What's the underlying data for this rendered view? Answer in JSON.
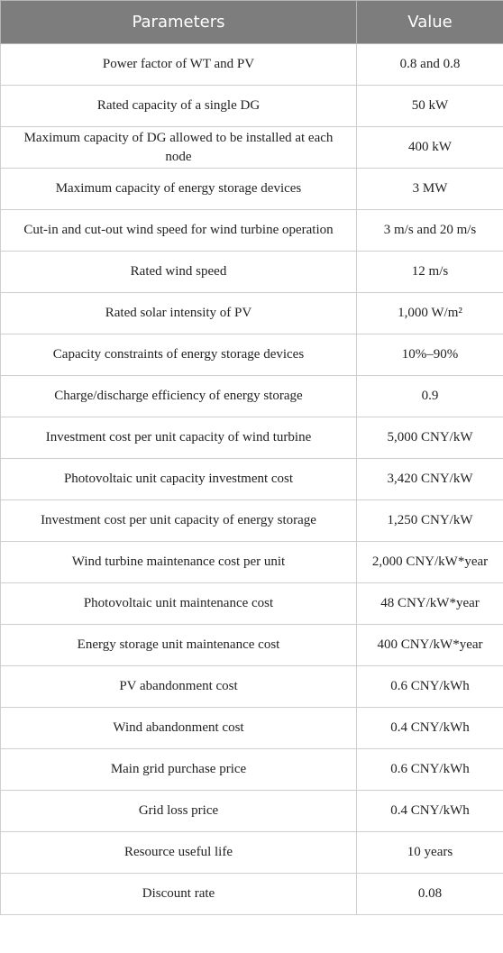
{
  "table": {
    "header": [
      "Parameters",
      "Value"
    ],
    "rows": [
      [
        "Power factor of WT and PV",
        "0.8 and 0.8"
      ],
      [
        "Rated capacity of a single DG",
        "50 kW"
      ],
      [
        "Maximum capacity of DG allowed to be installed at each node",
        "400 kW"
      ],
      [
        "Maximum capacity of energy storage devices",
        "3 MW"
      ],
      [
        "Cut-in and cut-out wind speed for wind turbine operation",
        "3 m/s and 20 m/s"
      ],
      [
        "Rated wind speed",
        "12 m/s"
      ],
      [
        "Rated solar intensity of PV",
        "1,000 W/m²"
      ],
      [
        "Capacity constraints of energy storage devices",
        "10%–90%"
      ],
      [
        "Charge/discharge efficiency of energy storage",
        "0.9"
      ],
      [
        "Investment cost per unit capacity of wind turbine",
        "5,000 CNY/kW"
      ],
      [
        "Photovoltaic unit capacity investment cost",
        "3,420 CNY/kW"
      ],
      [
        "Investment cost per unit capacity of energy storage",
        "1,250 CNY/kW"
      ],
      [
        "Wind turbine maintenance cost per unit",
        "2,000 CNY/kW*year"
      ],
      [
        "Photovoltaic unit maintenance cost",
        "48 CNY/kW*year"
      ],
      [
        "Energy storage unit maintenance cost",
        "400 CNY/kW*year"
      ],
      [
        "PV abandonment cost",
        "0.6 CNY/kWh"
      ],
      [
        "Wind abandonment cost",
        "0.4 CNY/kWh"
      ],
      [
        "Main grid purchase price",
        "0.6 CNY/kWh"
      ],
      [
        "Grid loss price",
        "0.4 CNY/kWh"
      ],
      [
        "Resource useful life",
        "10 years"
      ],
      [
        "Discount rate",
        "0.08"
      ]
    ]
  }
}
